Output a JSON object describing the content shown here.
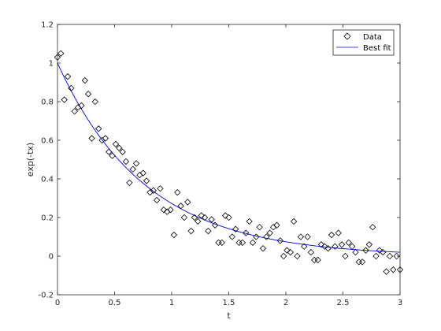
{
  "chart_data": {
    "type": "scatter",
    "xlabel": "t",
    "ylabel": "exp(-tx)",
    "xlim": [
      0,
      3
    ],
    "ylim": [
      -0.2,
      1.2
    ],
    "xticks": [
      0,
      0.5,
      1,
      1.5,
      2,
      2.5,
      3
    ],
    "xtick_labels": [
      "0",
      "0.5",
      "1",
      "1.5",
      "2",
      "2.5",
      "3"
    ],
    "yticks": [
      -0.2,
      0,
      0.2,
      0.4,
      0.6,
      0.8,
      1,
      1.2
    ],
    "ytick_labels": [
      "-0.2",
      "0",
      "0.2",
      "0.4",
      "0.6",
      "0.8",
      "1",
      "1.2"
    ],
    "grid": false,
    "legend": {
      "position": "top-right",
      "entries": [
        "Data",
        "Best fit"
      ]
    },
    "colors": {
      "data_marker": "#000000",
      "fit_line": "#0000ff",
      "axes": "#262626"
    },
    "series": [
      {
        "name": "Data",
        "kind": "scatter",
        "marker": "diamond-open",
        "x": [
          0.0,
          0.03,
          0.06,
          0.09,
          0.12,
          0.15,
          0.18,
          0.21,
          0.24,
          0.27,
          0.3,
          0.33,
          0.36,
          0.39,
          0.42,
          0.45,
          0.48,
          0.51,
          0.54,
          0.57,
          0.6,
          0.63,
          0.66,
          0.69,
          0.72,
          0.75,
          0.78,
          0.81,
          0.84,
          0.87,
          0.9,
          0.93,
          0.96,
          0.99,
          1.02,
          1.05,
          1.08,
          1.11,
          1.14,
          1.17,
          1.2,
          1.23,
          1.26,
          1.29,
          1.32,
          1.35,
          1.38,
          1.41,
          1.44,
          1.47,
          1.5,
          1.53,
          1.56,
          1.59,
          1.62,
          1.65,
          1.68,
          1.71,
          1.74,
          1.77,
          1.8,
          1.83,
          1.86,
          1.89,
          1.92,
          1.95,
          1.98,
          2.01,
          2.04,
          2.07,
          2.1,
          2.13,
          2.16,
          2.19,
          2.22,
          2.25,
          2.28,
          2.31,
          2.34,
          2.37,
          2.4,
          2.43,
          2.46,
          2.49,
          2.52,
          2.55,
          2.58,
          2.61,
          2.64,
          2.67,
          2.7,
          2.73,
          2.76,
          2.79,
          2.82,
          2.85,
          2.88,
          2.91,
          2.94,
          2.97,
          3.0
        ],
        "y": [
          1.03,
          1.05,
          0.81,
          0.93,
          0.87,
          0.75,
          0.77,
          0.78,
          0.91,
          0.84,
          0.61,
          0.8,
          0.66,
          0.6,
          0.61,
          0.54,
          0.52,
          0.58,
          0.56,
          0.54,
          0.49,
          0.38,
          0.45,
          0.48,
          0.42,
          0.43,
          0.39,
          0.33,
          0.34,
          0.29,
          0.35,
          0.24,
          0.23,
          0.24,
          0.11,
          0.33,
          0.26,
          0.2,
          0.28,
          0.13,
          0.2,
          0.18,
          0.21,
          0.2,
          0.13,
          0.19,
          0.16,
          0.07,
          0.07,
          0.21,
          0.2,
          0.1,
          0.14,
          0.07,
          0.07,
          0.12,
          0.18,
          0.07,
          0.1,
          0.15,
          0.04,
          0.1,
          0.12,
          0.15,
          0.16,
          0.08,
          0.0,
          0.03,
          0.02,
          0.18,
          0.0,
          0.1,
          0.05,
          0.1,
          0.02,
          -0.02,
          -0.02,
          0.06,
          0.05,
          0.04,
          0.11,
          0.05,
          0.12,
          0.06,
          0.0,
          0.07,
          0.05,
          0.02,
          -0.03,
          -0.03,
          0.03,
          0.06,
          0.15,
          0.0,
          0.03,
          0.02,
          -0.08,
          0.0,
          -0.07,
          0.0,
          -0.07
        ]
      },
      {
        "name": "Best fit",
        "kind": "line",
        "function": "exp(-1.3*t)",
        "rate": 1.3
      }
    ]
  }
}
